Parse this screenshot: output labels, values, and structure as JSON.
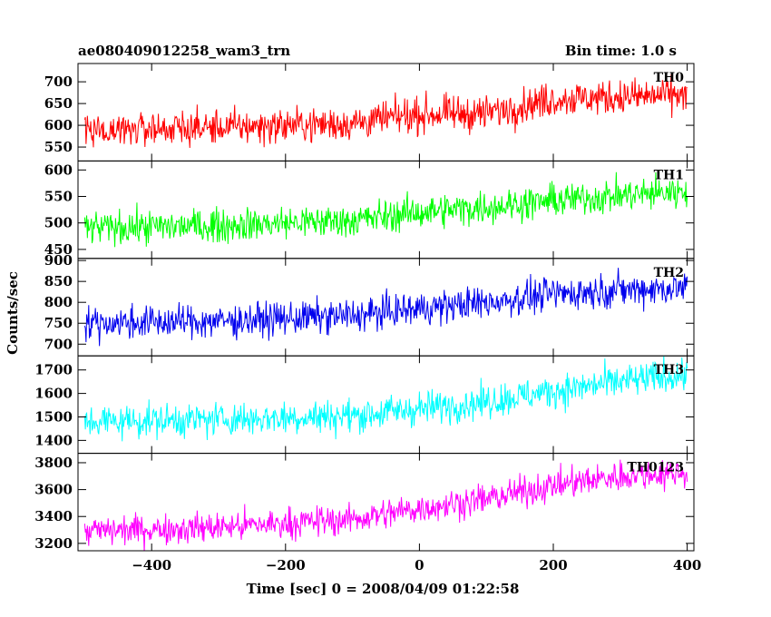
{
  "header": {
    "left_title": "ae080409012258_wam3_trn",
    "right_title": "Bin time: 1.0 s"
  },
  "chart_data": {
    "type": "line",
    "xlabel": "Time [sec] 0 = 2008/04/09 01:22:58",
    "ylabel": "Counts/sec",
    "xlim": [
      -510,
      410
    ],
    "xticks": [
      -400,
      -200,
      0,
      200,
      400
    ],
    "x_range": [
      -500,
      400
    ],
    "bin_seconds": 1.0,
    "panels": [
      {
        "name": "TH0",
        "color": "#ff0000",
        "ylim": [
          518,
          742
        ],
        "yticks": [
          550,
          600,
          650,
          700
        ],
        "trend": [
          {
            "x": -500,
            "y": 590
          },
          {
            "x": -300,
            "y": 595
          },
          {
            "x": -100,
            "y": 605
          },
          {
            "x": 0,
            "y": 625
          },
          {
            "x": 100,
            "y": 628
          },
          {
            "x": 200,
            "y": 660
          },
          {
            "x": 300,
            "y": 665
          },
          {
            "x": 400,
            "y": 670
          }
        ],
        "noise_amplitude": 28
      },
      {
        "name": "TH1",
        "color": "#00ff00",
        "ylim": [
          433,
          617
        ],
        "yticks": [
          450,
          500,
          550,
          600
        ],
        "trend": [
          {
            "x": -500,
            "y": 490
          },
          {
            "x": -300,
            "y": 495
          },
          {
            "x": -100,
            "y": 505
          },
          {
            "x": 0,
            "y": 520
          },
          {
            "x": 100,
            "y": 530
          },
          {
            "x": 200,
            "y": 542
          },
          {
            "x": 300,
            "y": 552
          },
          {
            "x": 400,
            "y": 560
          }
        ],
        "noise_amplitude": 22
      },
      {
        "name": "TH2",
        "color": "#0000ee",
        "ylim": [
          672,
          905
        ],
        "yticks": [
          700,
          750,
          800,
          850,
          900
        ],
        "trend": [
          {
            "x": -500,
            "y": 750
          },
          {
            "x": -300,
            "y": 755
          },
          {
            "x": -100,
            "y": 768
          },
          {
            "x": 0,
            "y": 785
          },
          {
            "x": 100,
            "y": 800
          },
          {
            "x": 200,
            "y": 820
          },
          {
            "x": 300,
            "y": 830
          },
          {
            "x": 400,
            "y": 835
          }
        ],
        "noise_amplitude": 28
      },
      {
        "name": "TH3",
        "color": "#00ffff",
        "ylim": [
          1345,
          1760
        ],
        "yticks": [
          1400,
          1500,
          1600,
          1700
        ],
        "trend": [
          {
            "x": -500,
            "y": 1480
          },
          {
            "x": -300,
            "y": 1490
          },
          {
            "x": -100,
            "y": 1505
          },
          {
            "x": 0,
            "y": 1535
          },
          {
            "x": 100,
            "y": 1565
          },
          {
            "x": 200,
            "y": 1610
          },
          {
            "x": 300,
            "y": 1650
          },
          {
            "x": 400,
            "y": 1680
          }
        ],
        "noise_amplitude": 50
      },
      {
        "name": "TH0123",
        "color": "#ff00ff",
        "ylim": [
          3145,
          3870
        ],
        "yticks": [
          3200,
          3400,
          3600,
          3800
        ],
        "trend": [
          {
            "x": -500,
            "y": 3290
          },
          {
            "x": -300,
            "y": 3320
          },
          {
            "x": -100,
            "y": 3380
          },
          {
            "x": 0,
            "y": 3460
          },
          {
            "x": 100,
            "y": 3530
          },
          {
            "x": 200,
            "y": 3630
          },
          {
            "x": 300,
            "y": 3700
          },
          {
            "x": 400,
            "y": 3730
          }
        ],
        "noise_amplitude": 80
      }
    ]
  }
}
